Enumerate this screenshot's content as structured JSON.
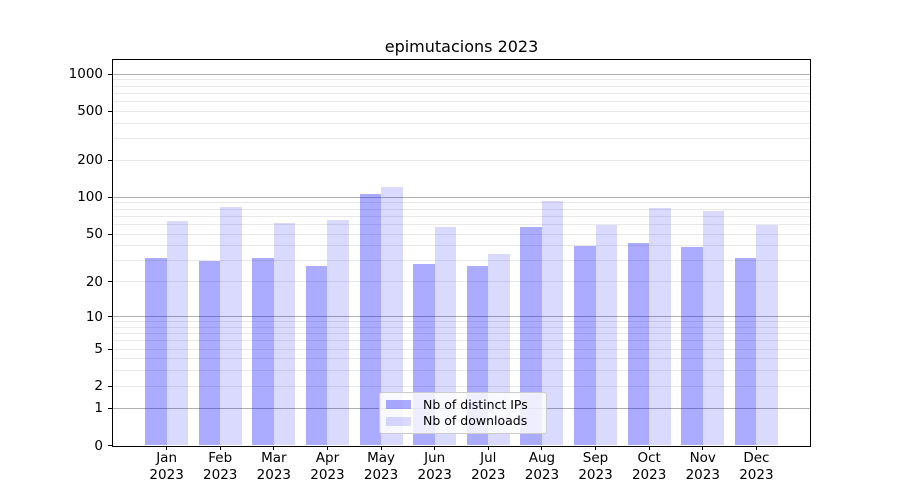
{
  "chart_data": {
    "type": "bar",
    "title": "epimutacions 2023",
    "categories": [
      "Jan",
      "Feb",
      "Mar",
      "Apr",
      "May",
      "Jun",
      "Jul",
      "Aug",
      "Sep",
      "Oct",
      "Nov",
      "Dec"
    ],
    "year_label": "2023",
    "series": [
      {
        "name": "Nb of distinct IPs",
        "color": "#0000ff",
        "alpha": 0.33,
        "effective_color": "#ababff",
        "values": [
          32,
          30,
          32,
          27,
          106,
          28,
          27,
          57,
          40,
          42,
          39,
          32
        ]
      },
      {
        "name": "Nb of downloads",
        "color": "#0000ff",
        "alpha": 0.145,
        "effective_color": "#dcdcff",
        "values": [
          64,
          84,
          62,
          65,
          121,
          57,
          34,
          93,
          59,
          82,
          78,
          59
        ]
      }
    ],
    "yscale": "log1p",
    "yticks": [
      0,
      1,
      2,
      5,
      10,
      20,
      50,
      100,
      200,
      500,
      1000
    ],
    "ylim": [
      0,
      1300
    ],
    "xlabel": "",
    "ylabel": "",
    "grid": true,
    "major_grid_at": [
      1,
      10,
      100,
      1000
    ],
    "legend_position": "lower-center",
    "colors": {
      "major_grid": "#b0b0b0",
      "minor_grid": "#e9e9e9",
      "axis": "#000000",
      "background": "#ffffff"
    }
  }
}
